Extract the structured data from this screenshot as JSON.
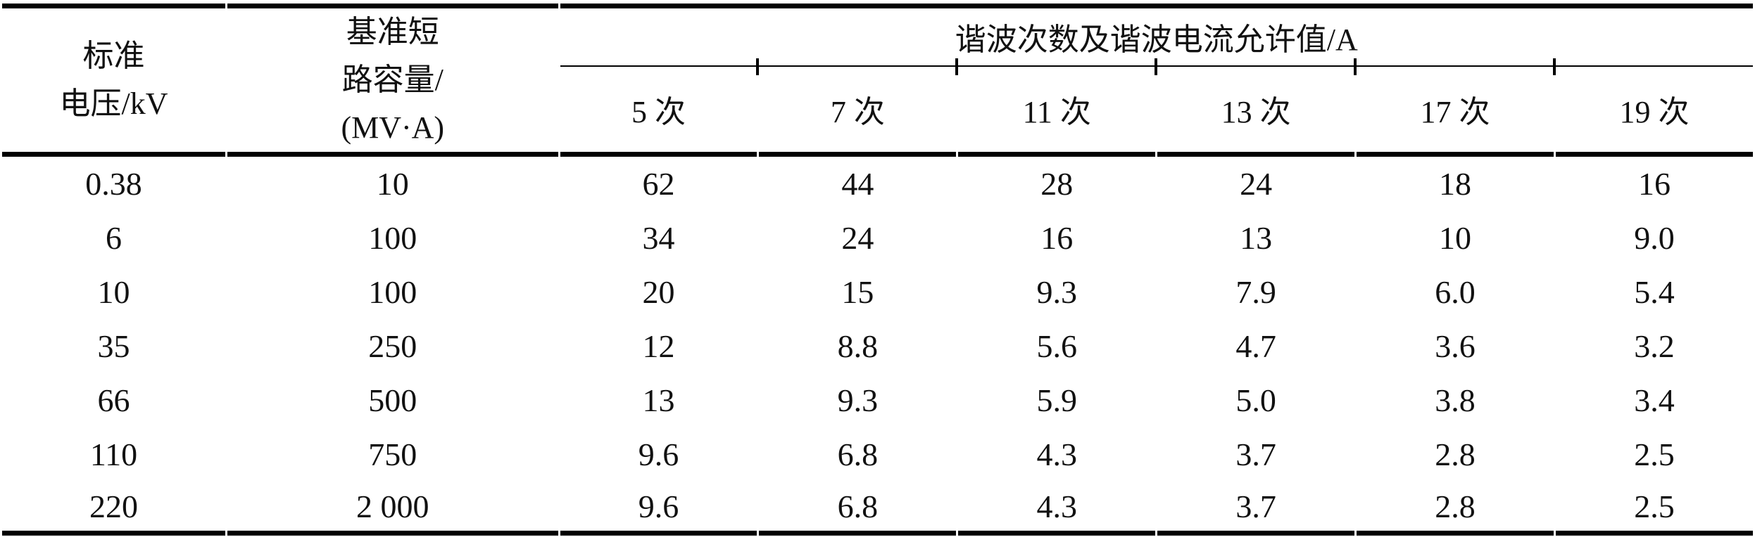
{
  "page": {
    "background": "#ffffff",
    "text_color": "#111111",
    "rule_color": "#000000"
  },
  "table": {
    "headers": {
      "standard_voltage": {
        "line1": "标准",
        "line2": "电压/kV"
      },
      "base_capacity": {
        "line1": "基准短",
        "line2": "路容量/",
        "line3": "(MV·A)"
      },
      "harmonics_title": "谐波次数及谐波电流允许值/A",
      "orders": [
        "5 次",
        "7 次",
        "11 次",
        "13 次",
        "17 次",
        "19 次"
      ]
    },
    "rows": [
      [
        "0.38",
        "10",
        "62",
        "44",
        "28",
        "24",
        "18",
        "16"
      ],
      [
        "6",
        "100",
        "34",
        "24",
        "16",
        "13",
        "10",
        "9.0"
      ],
      [
        "10",
        "100",
        "20",
        "15",
        "9.3",
        "7.9",
        "6.0",
        "5.4"
      ],
      [
        "35",
        "250",
        "12",
        "8.8",
        "5.6",
        "4.7",
        "3.6",
        "3.2"
      ],
      [
        "66",
        "500",
        "13",
        "9.3",
        "5.9",
        "5.0",
        "3.8",
        "3.4"
      ],
      [
        "110",
        "750",
        "9.6",
        "6.8",
        "4.3",
        "3.7",
        "2.8",
        "2.5"
      ],
      [
        "220",
        "2 000",
        "9.6",
        "6.8",
        "4.3",
        "3.7",
        "2.8",
        "2.5"
      ]
    ]
  }
}
